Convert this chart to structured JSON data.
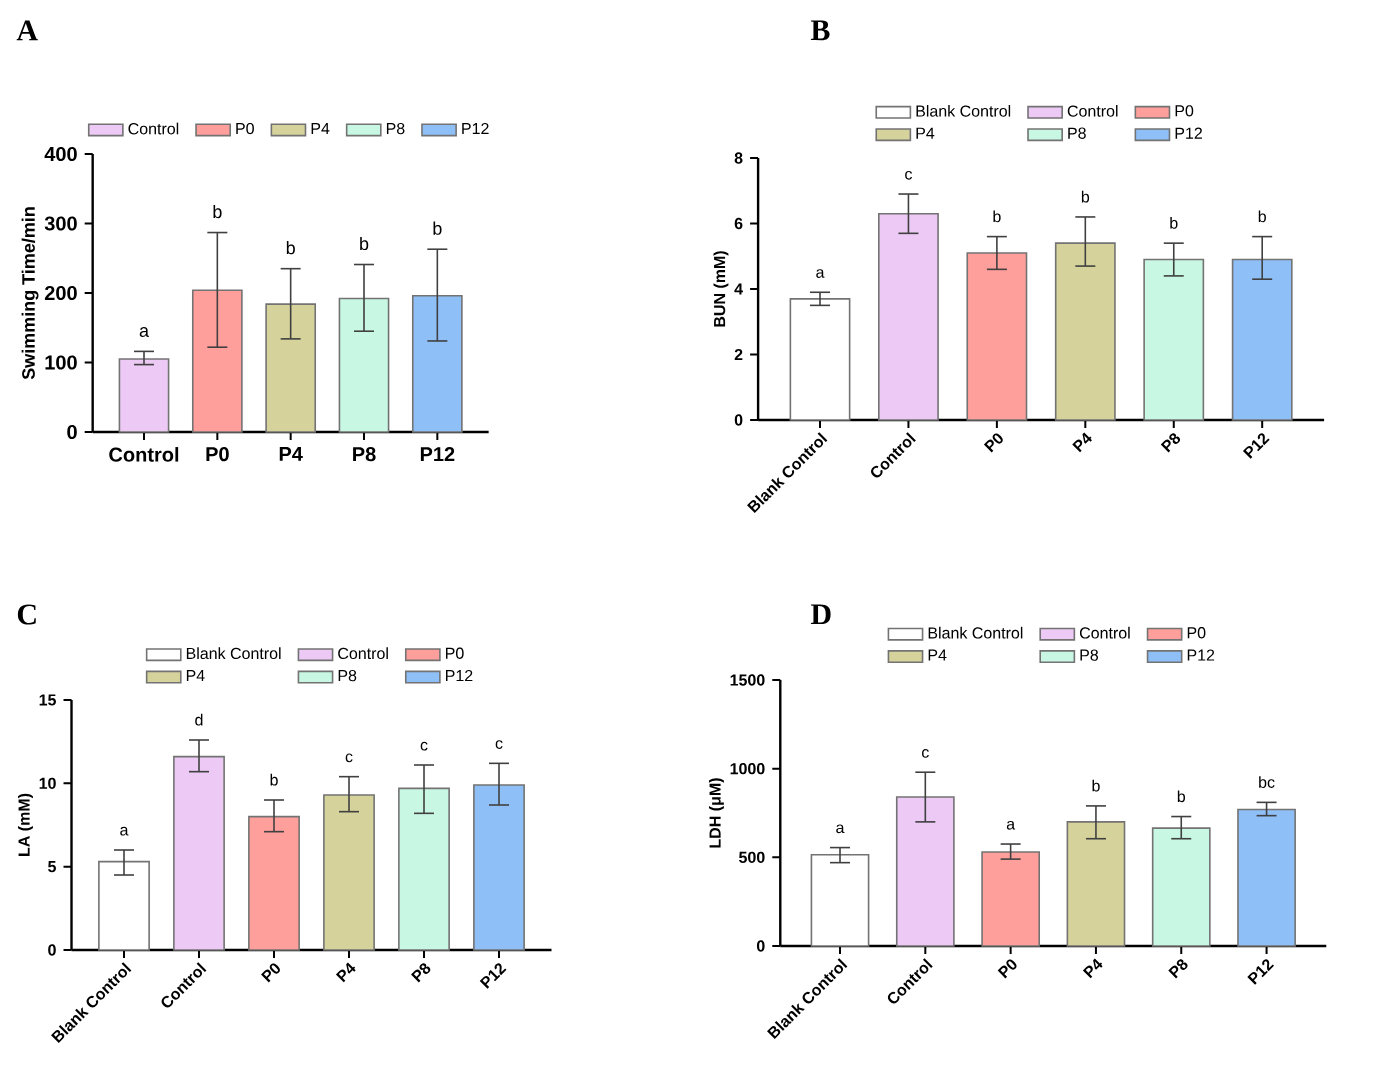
{
  "chart_data": [
    {
      "type": "bar",
      "title": "A",
      "ylabel": "Swimming Time/min",
      "categories": [
        "Control",
        "P0",
        "P4",
        "P8",
        "P12"
      ],
      "ylim": [
        0,
        400
      ],
      "yticks": [
        0,
        100,
        200,
        300,
        400
      ],
      "legend": "top",
      "series": [
        {
          "name": "Control",
          "color": "#eccaf5",
          "values": [
            105,
            null,
            null,
            null,
            null
          ],
          "errors": [
            [
              97,
              116
            ],
            null,
            null,
            null,
            null
          ]
        },
        {
          "name": "P0",
          "color": "#ff9f9b",
          "values": [
            null,
            204,
            null,
            null,
            null
          ],
          "errors": [
            null,
            [
              122,
              287
            ],
            null,
            null,
            null
          ]
        },
        {
          "name": "P4",
          "color": "#d5d29b",
          "values": [
            null,
            null,
            184,
            null,
            null
          ],
          "errors": [
            null,
            null,
            [
              134,
              235
            ],
            null,
            null
          ]
        },
        {
          "name": "P8",
          "color": "#c8f7e3",
          "values": [
            null,
            null,
            null,
            192,
            null
          ],
          "errors": [
            null,
            null,
            null,
            [
              145,
              241
            ],
            null
          ]
        },
        {
          "name": "P12",
          "color": "#8fbff7",
          "values": [
            null,
            null,
            null,
            null,
            196
          ],
          "errors": [
            null,
            null,
            null,
            null,
            [
              131,
              263
            ]
          ]
        }
      ],
      "annotations": [
        "a",
        "b",
        "b",
        "b",
        "b"
      ]
    },
    {
      "type": "bar",
      "title": "B",
      "ylabel": "BUN (mM)",
      "categories": [
        "Blank Control",
        "Control",
        "P0",
        "P4",
        "P8",
        "P12"
      ],
      "ylim": [
        0,
        8
      ],
      "yticks": [
        0,
        2,
        4,
        6,
        8
      ],
      "legend": "top",
      "series": [
        {
          "name": "Blank Control",
          "color": "#ffffff",
          "values": [
            3.7,
            null,
            null,
            null,
            null,
            null
          ],
          "errors": [
            [
              3.5,
              3.9
            ],
            null,
            null,
            null,
            null,
            null
          ]
        },
        {
          "name": "Control",
          "color": "#eccaf5",
          "values": [
            null,
            6.3,
            null,
            null,
            null,
            null
          ],
          "errors": [
            null,
            [
              5.7,
              6.9
            ],
            null,
            null,
            null,
            null
          ]
        },
        {
          "name": "P0",
          "color": "#ff9f9b",
          "values": [
            null,
            null,
            5.1,
            null,
            null,
            null
          ],
          "errors": [
            null,
            null,
            [
              4.6,
              5.6
            ],
            null,
            null,
            null
          ]
        },
        {
          "name": "P4",
          "color": "#d5d29b",
          "values": [
            null,
            null,
            null,
            5.4,
            null,
            null
          ],
          "errors": [
            null,
            null,
            null,
            [
              4.7,
              6.2
            ],
            null,
            null
          ]
        },
        {
          "name": "P8",
          "color": "#c8f7e3",
          "values": [
            null,
            null,
            null,
            null,
            4.9,
            null
          ],
          "errors": [
            null,
            null,
            null,
            null,
            [
              4.4,
              5.4
            ],
            null
          ]
        },
        {
          "name": "P12",
          "color": "#8fbff7",
          "values": [
            null,
            null,
            null,
            null,
            null,
            4.9
          ],
          "errors": [
            null,
            null,
            null,
            null,
            null,
            [
              4.3,
              5.6
            ]
          ]
        }
      ],
      "annotations": [
        "a",
        "c",
        "b",
        "b",
        "b",
        "b"
      ]
    },
    {
      "type": "bar",
      "title": "C",
      "ylabel": "LA (mM)",
      "categories": [
        "Blank Control",
        "Control",
        "P0",
        "P4",
        "P8",
        "P12"
      ],
      "ylim": [
        0,
        15
      ],
      "yticks": [
        0,
        5,
        10,
        15
      ],
      "legend": "top",
      "series": [
        {
          "name": "Blank Control",
          "color": "#ffffff",
          "values": [
            5.3,
            null,
            null,
            null,
            null,
            null
          ],
          "errors": [
            [
              4.5,
              6.0
            ],
            null,
            null,
            null,
            null,
            null
          ]
        },
        {
          "name": "Control",
          "color": "#eccaf5",
          "values": [
            null,
            11.6,
            null,
            null,
            null,
            null
          ],
          "errors": [
            null,
            [
              10.7,
              12.6
            ],
            null,
            null,
            null,
            null
          ]
        },
        {
          "name": "P0",
          "color": "#ff9f9b",
          "values": [
            null,
            null,
            8.0,
            null,
            null,
            null
          ],
          "errors": [
            null,
            null,
            [
              7.1,
              9.0
            ],
            null,
            null,
            null
          ]
        },
        {
          "name": "P4",
          "color": "#d5d29b",
          "values": [
            null,
            null,
            null,
            9.3,
            null,
            null
          ],
          "errors": [
            null,
            null,
            null,
            [
              8.3,
              10.4
            ],
            null,
            null
          ]
        },
        {
          "name": "P8",
          "color": "#c8f7e3",
          "values": [
            null,
            null,
            null,
            null,
            9.7,
            null
          ],
          "errors": [
            null,
            null,
            null,
            null,
            [
              8.2,
              11.1
            ],
            null
          ]
        },
        {
          "name": "P12",
          "color": "#8fbff7",
          "values": [
            null,
            null,
            null,
            null,
            null,
            9.9
          ],
          "errors": [
            null,
            null,
            null,
            null,
            null,
            [
              8.7,
              11.2
            ]
          ]
        }
      ],
      "annotations": [
        "a",
        "d",
        "b",
        "c",
        "c",
        "c"
      ]
    },
    {
      "type": "bar",
      "title": "D",
      "ylabel": "LDH (μM)",
      "categories": [
        "Blank Control",
        "Control",
        "P0",
        "P4",
        "P8",
        "P12"
      ],
      "ylim": [
        0,
        1500
      ],
      "yticks": [
        0,
        500,
        1000,
        1500
      ],
      "legend": "top",
      "series": [
        {
          "name": "Blank Control",
          "color": "#ffffff",
          "values": [
            515,
            null,
            null,
            null,
            null,
            null
          ],
          "errors": [
            [
              470,
              555
            ],
            null,
            null,
            null,
            null,
            null
          ]
        },
        {
          "name": "Control",
          "color": "#eccaf5",
          "values": [
            null,
            840,
            null,
            null,
            null,
            null
          ],
          "errors": [
            null,
            [
              700,
              980
            ],
            null,
            null,
            null,
            null
          ]
        },
        {
          "name": "P0",
          "color": "#ff9f9b",
          "values": [
            null,
            null,
            530,
            null,
            null,
            null
          ],
          "errors": [
            null,
            null,
            [
              490,
              575
            ],
            null,
            null,
            null
          ]
        },
        {
          "name": "P4",
          "color": "#d5d29b",
          "values": [
            null,
            null,
            null,
            700,
            null,
            null
          ],
          "errors": [
            null,
            null,
            null,
            [
              605,
              790
            ],
            null,
            null
          ]
        },
        {
          "name": "P8",
          "color": "#c8f7e3",
          "values": [
            null,
            null,
            null,
            null,
            665,
            null
          ],
          "errors": [
            null,
            null,
            null,
            null,
            [
              605,
              730
            ],
            null
          ]
        },
        {
          "name": "P12",
          "color": "#8fbff7",
          "values": [
            null,
            null,
            null,
            null,
            null,
            770
          ],
          "errors": [
            null,
            null,
            null,
            null,
            null,
            [
              735,
              810
            ]
          ]
        }
      ],
      "annotations": [
        "a",
        "c",
        "a",
        "b",
        "b",
        "bc"
      ]
    }
  ]
}
